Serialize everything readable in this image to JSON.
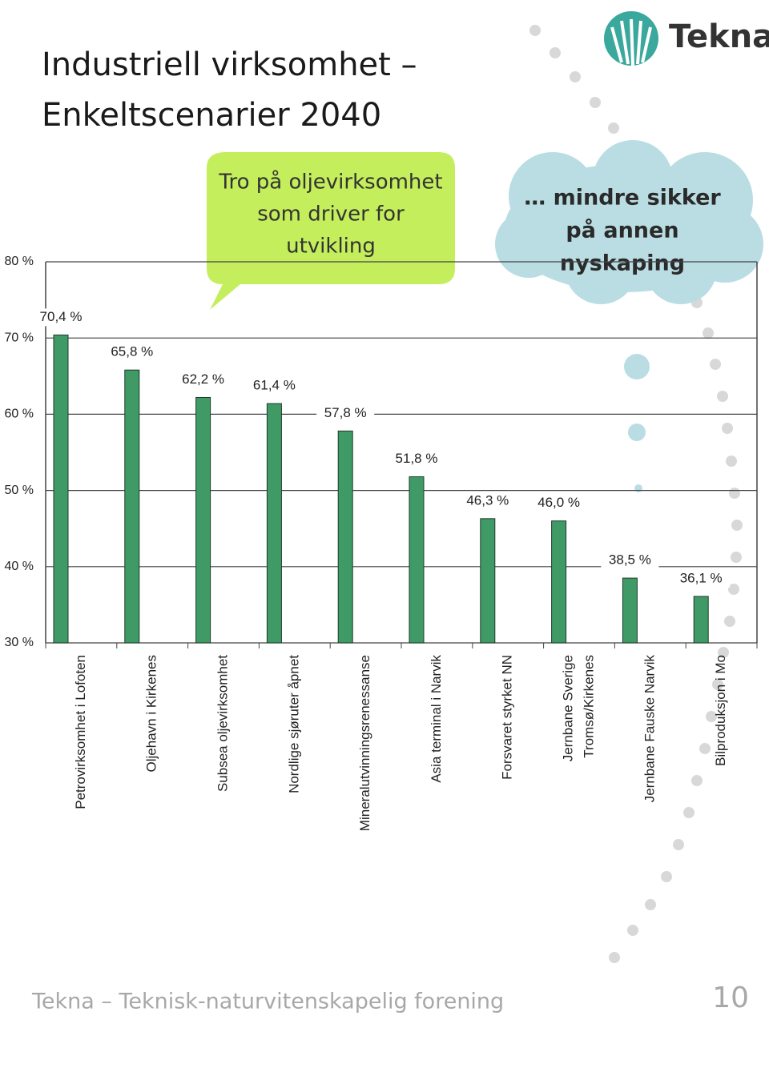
{
  "chart_data": {
    "type": "bar",
    "title": [
      "Industriell virksomhet –",
      "Enkeltscenarier 2040"
    ],
    "categories": [
      "Petrovirksomhet i Lofoten",
      "Oljehavn i Kirkenes",
      "Subsea oljevirksomhet",
      "Nordlige sjøruter åpnet",
      "Mineralutvinningsrenessanse",
      "Asia terminal i Narvik",
      "Forsvaret styrket NN",
      [
        "Jernbane Sverige",
        "Tromsø/Kirkenes"
      ],
      "Jernbane Fauske Narvik",
      "Bilproduksjon i Mo"
    ],
    "values": [
      70.4,
      65.8,
      62.2,
      61.4,
      57.8,
      51.8,
      46.3,
      46.0,
      38.5,
      36.1
    ],
    "value_labels": [
      "70,4 %",
      "65,8 %",
      "62,2 %",
      "61,4 %",
      "57,8 %",
      "51,8 %",
      "46,3 %",
      "46,0 %",
      "38,5 %",
      "36,1 %"
    ],
    "color": "#3f9a66",
    "ylim": [
      30,
      80
    ],
    "yticks": [
      {
        "value": 30,
        "label": "30 %"
      },
      {
        "value": 40,
        "label": "40 %"
      },
      {
        "value": 50,
        "label": "50 %"
      },
      {
        "value": 60,
        "label": "60 %"
      },
      {
        "value": 70,
        "label": "70 %"
      },
      {
        "value": 80,
        "label": "80 %"
      }
    ],
    "grid": true,
    "annotations": [
      {
        "lines": [
          "Tro på oljevirksomhet",
          "som driver for",
          "utvikling"
        ]
      },
      {
        "lines": [
          "… mindre sikker",
          "på annen",
          "nyskaping"
        ]
      }
    ]
  },
  "logo": "Tekna",
  "footer": {
    "text": "Tekna – Teknisk-naturvitenskapelig forening",
    "page": 10
  }
}
